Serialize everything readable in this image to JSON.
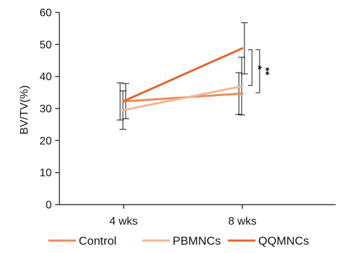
{
  "chart_data": {
    "type": "line",
    "title": "",
    "xlabel": "",
    "ylabel": "BV/TV(%)",
    "categories": [
      "4 wks",
      "8 wks"
    ],
    "ylim": [
      0,
      60
    ],
    "yticks": [
      0,
      10,
      20,
      30,
      40,
      50,
      60
    ],
    "grid": false,
    "legend_position": "bottom",
    "series": [
      {
        "name": "Control",
        "values": [
          32.2,
          34.7
        ],
        "error": [
          5.8,
          6.5
        ],
        "color": "#ea8a5c"
      },
      {
        "name": "PBMNCs",
        "values": [
          29.5,
          37.0
        ],
        "error": [
          6.0,
          9.0
        ],
        "color": "#f4b597"
      },
      {
        "name": "QQMNCs",
        "values": [
          32.3,
          48.8
        ],
        "error": [
          5.5,
          8.0
        ],
        "color": "#e2642c"
      }
    ],
    "annotations": [
      {
        "text": "*",
        "between": [
          "PBMNCs",
          "QQMNCs"
        ],
        "at": "8 wks"
      },
      {
        "text": "**",
        "between": [
          "Control",
          "QQMNCs"
        ],
        "at": "8 wks"
      }
    ]
  }
}
